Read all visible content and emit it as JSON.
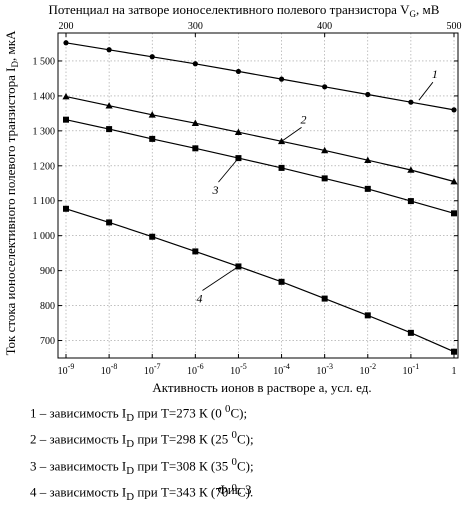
{
  "chart_data": {
    "type": "line",
    "title": "Потенциал на затворе ионоселективного полевого транзистора V",
    "title_subscript": "G",
    "title_unit": ", мВ",
    "ylabel": "Ток стока ионоселективного полевого транзистора I",
    "ylabel_subscript": "D",
    "ylabel_unit": ", мкА",
    "xlabel": "Активность  ионов в растворе a, усл. ед.",
    "x_scale": "log",
    "x_ticks": [
      1e-09,
      1e-08,
      1e-07,
      1e-06,
      1e-05,
      0.0001,
      0.001,
      0.01,
      0.1,
      1
    ],
    "x_tick_mantissa": "10",
    "x_tick_exponents": [
      "-9",
      "-8",
      "-7",
      "-6",
      "-5",
      "-4",
      "-3",
      "-2",
      "-1",
      ""
    ],
    "x_tick_last_label": "1",
    "top_axis": {
      "ticks": [
        200,
        300,
        400,
        500
      ],
      "tick_labels": [
        "200",
        "300",
        "400",
        "500"
      ],
      "range": [
        200,
        500
      ]
    },
    "ylim": [
      650,
      1580
    ],
    "y_ticks": [
      700,
      800,
      900,
      1000,
      1100,
      1200,
      1300,
      1400,
      1500
    ],
    "y_tick_labels": [
      "700",
      "800",
      "900",
      "1 000",
      "1 100",
      "1 200",
      "1 300",
      "1 400",
      "1 500"
    ],
    "grid": true,
    "series": [
      {
        "name": "1",
        "marker": "circle",
        "x": [
          1e-09,
          1e-08,
          1e-07,
          1e-06,
          1e-05,
          0.0001,
          0.001,
          0.01,
          0.1,
          1
        ],
        "values": [
          1552,
          1532,
          1512,
          1492,
          1470,
          1448,
          1426,
          1404,
          1382,
          1360
        ]
      },
      {
        "name": "2",
        "marker": "triangle",
        "x": [
          1e-09,
          1e-08,
          1e-07,
          1e-06,
          1e-05,
          0.0001,
          0.001,
          0.01,
          0.1,
          1
        ],
        "values": [
          1398,
          1372,
          1346,
          1322,
          1296,
          1270,
          1244,
          1216,
          1188,
          1155
        ]
      },
      {
        "name": "3",
        "marker": "square",
        "x": [
          1e-09,
          1e-08,
          1e-07,
          1e-06,
          1e-05,
          0.0001,
          0.001,
          0.01,
          0.1,
          1
        ],
        "values": [
          1332,
          1305,
          1277,
          1250,
          1222,
          1194,
          1164,
          1134,
          1099,
          1064
        ]
      },
      {
        "name": "4",
        "marker": "square",
        "x": [
          1e-09,
          1e-08,
          1e-07,
          1e-06,
          1e-05,
          0.0001,
          0.001,
          0.01,
          0.1,
          1
        ],
        "values": [
          1077,
          1038,
          997,
          955,
          912,
          868,
          820,
          772,
          722,
          668
        ]
      }
    ],
    "curve_labels": [
      {
        "text": "1",
        "series": "1",
        "at_x": 0.1
      },
      {
        "text": "2",
        "series": "2",
        "at_x": 0.0001
      },
      {
        "text": "3",
        "series": "3",
        "at_x": 1e-05
      },
      {
        "text": "4",
        "series": "4",
        "at_x": 1e-05
      }
    ]
  },
  "legend": [
    {
      "prefix": "1 – зависимость I",
      "sub": "D",
      "mid": " при Т=273 К (0 ",
      "sup": "0",
      "suffix": "C);"
    },
    {
      "prefix": "2 – зависимость I",
      "sub": "D",
      "mid": " при Т=298 К (25 ",
      "sup": "0",
      "suffix": "C);"
    },
    {
      "prefix": "3 – зависимость I",
      "sub": "D",
      "mid": " при Т=308 К (35 ",
      "sup": "0",
      "suffix": "C);"
    },
    {
      "prefix": "4 – зависимость I",
      "sub": "D",
      "mid": " при Т=343 К (70 ",
      "sup": "0",
      "suffix": "C)."
    }
  ],
  "figure_caption": "Фиг. 3"
}
